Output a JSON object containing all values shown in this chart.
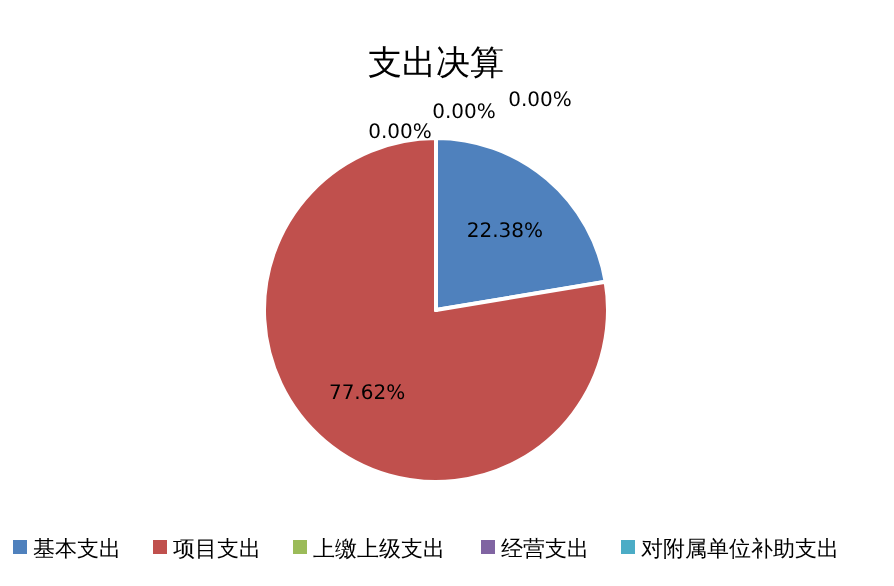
{
  "chart_data": {
    "type": "pie",
    "title": "支出决算",
    "categories": [
      "基本支出",
      "项目支出",
      "上缴上级支出",
      "经营支出",
      "对附属单位补助支出"
    ],
    "values": [
      22.38,
      77.62,
      0,
      0,
      0
    ],
    "colors": [
      "#4f81bd",
      "#c0504d",
      "#9bbb59",
      "#8064a2",
      "#4bacc6"
    ],
    "value_labels": [
      "22.38%",
      "77.62%",
      "0.00%",
      "0.00%",
      "0.00%"
    ],
    "legend": "bottom"
  }
}
